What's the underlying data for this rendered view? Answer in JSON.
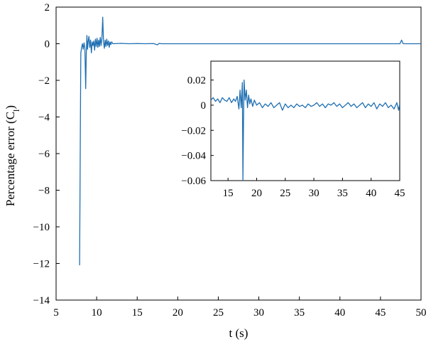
{
  "chart_data": [
    {
      "id": "main",
      "type": "line",
      "xlabel": "t (s)",
      "ylabel": "Percentage error (C",
      "ylabel_sub": "l",
      "ylabel_close": ")",
      "xlim": [
        5,
        50
      ],
      "ylim": [
        -14,
        2
      ],
      "xticks": [
        "5",
        "10",
        "15",
        "20",
        "25",
        "30",
        "35",
        "40",
        "45",
        "50"
      ],
      "yticks": [
        "2",
        "0",
        "−2",
        "−4",
        "−6",
        "−8",
        "−10",
        "−12",
        "−14"
      ],
      "grid": false,
      "series": [
        {
          "color": "#1f6fb2",
          "points": [
            [
              7.9,
              -12.1
            ],
            [
              8.0,
              -4.0
            ],
            [
              8.05,
              -0.5
            ],
            [
              8.15,
              -0.2
            ],
            [
              8.25,
              0.0
            ],
            [
              8.35,
              -0.3
            ],
            [
              8.45,
              0.05
            ],
            [
              8.55,
              -0.25
            ],
            [
              8.65,
              -2.45
            ],
            [
              8.72,
              -0.6
            ],
            [
              8.8,
              0.45
            ],
            [
              8.88,
              -0.3
            ],
            [
              8.95,
              0.1
            ],
            [
              9.05,
              0.4
            ],
            [
              9.15,
              -0.2
            ],
            [
              9.25,
              0.2
            ],
            [
              9.35,
              -0.5
            ],
            [
              9.45,
              0.1
            ],
            [
              9.55,
              -0.1
            ],
            [
              9.65,
              0.15
            ],
            [
              9.75,
              -0.35
            ],
            [
              9.85,
              0.25
            ],
            [
              9.95,
              -0.15
            ],
            [
              10.05,
              0.3
            ],
            [
              10.15,
              -0.2
            ],
            [
              10.25,
              0.2
            ],
            [
              10.35,
              -0.15
            ],
            [
              10.45,
              0.35
            ],
            [
              10.55,
              -0.1
            ],
            [
              10.65,
              0.3
            ],
            [
              10.75,
              1.45
            ],
            [
              10.85,
              0.1
            ],
            [
              10.95,
              -0.25
            ],
            [
              11.05,
              0.2
            ],
            [
              11.15,
              -0.15
            ],
            [
              11.25,
              0.25
            ],
            [
              11.35,
              -0.1
            ],
            [
              11.45,
              0.15
            ],
            [
              11.55,
              -0.2
            ],
            [
              11.65,
              0.1
            ],
            [
              11.75,
              -0.05
            ],
            [
              11.85,
              0.1
            ],
            [
              12.0,
              0.0
            ],
            [
              13.0,
              0.02
            ],
            [
              14.0,
              0.0
            ],
            [
              15.0,
              0.01
            ],
            [
              16.0,
              0.0
            ],
            [
              17.0,
              0.01
            ],
            [
              17.5,
              -0.06
            ],
            [
              17.7,
              0.02
            ],
            [
              18.0,
              0.0
            ],
            [
              20.0,
              0.0
            ],
            [
              25.0,
              0.0
            ],
            [
              30.0,
              0.0
            ],
            [
              35.0,
              0.0
            ],
            [
              40.0,
              0.0
            ],
            [
              45.0,
              0.0
            ],
            [
              47.4,
              0.0
            ],
            [
              47.6,
              0.2
            ],
            [
              47.8,
              0.0
            ],
            [
              50.0,
              0.0
            ]
          ]
        }
      ]
    },
    {
      "id": "inset",
      "type": "line",
      "xlim": [
        12,
        45
      ],
      "ylim": [
        -0.06,
        0.035
      ],
      "xticks": [
        "15",
        "20",
        "25",
        "30",
        "35",
        "40",
        "45"
      ],
      "yticks": [
        "0.02",
        "0",
        "−0.02",
        "−0.04",
        "−0.06"
      ],
      "grid": false,
      "series": [
        {
          "color": "#1f6fb2",
          "points": [
            [
              12.0,
              0.004
            ],
            [
              12.4,
              0.006
            ],
            [
              12.8,
              0.003
            ],
            [
              13.2,
              0.005
            ],
            [
              13.6,
              0.002
            ],
            [
              14.0,
              0.006
            ],
            [
              14.4,
              0.004
            ],
            [
              14.8,
              0.003
            ],
            [
              15.2,
              0.006
            ],
            [
              15.6,
              0.002
            ],
            [
              16.0,
              0.005
            ],
            [
              16.3,
              0.003
            ],
            [
              16.6,
              0.007
            ],
            [
              16.9,
              -0.003
            ],
            [
              17.1,
              0.012
            ],
            [
              17.3,
              -0.002
            ],
            [
              17.5,
              0.018
            ],
            [
              17.6,
              -0.06
            ],
            [
              17.7,
              -0.015
            ],
            [
              17.8,
              0.02
            ],
            [
              18.0,
              0.004
            ],
            [
              18.2,
              0.012
            ],
            [
              18.4,
              -0.002
            ],
            [
              18.6,
              0.008
            ],
            [
              18.8,
              0.001
            ],
            [
              19.0,
              0.005
            ],
            [
              19.3,
              -0.001
            ],
            [
              19.6,
              0.004
            ],
            [
              20.0,
              0.0
            ],
            [
              20.5,
              0.002
            ],
            [
              21.0,
              -0.002
            ],
            [
              21.5,
              0.001
            ],
            [
              22.0,
              -0.001
            ],
            [
              22.5,
              0.002
            ],
            [
              23.0,
              -0.002
            ],
            [
              23.5,
              0.0
            ],
            [
              24.0,
              0.002
            ],
            [
              24.5,
              -0.004
            ],
            [
              25.0,
              0.001
            ],
            [
              25.5,
              -0.002
            ],
            [
              26.0,
              0.0
            ],
            [
              26.5,
              -0.002
            ],
            [
              27.0,
              0.001
            ],
            [
              27.5,
              -0.001
            ],
            [
              28.0,
              0.0
            ],
            [
              28.5,
              -0.002
            ],
            [
              29.0,
              0.001
            ],
            [
              29.5,
              -0.001
            ],
            [
              30.0,
              0.0
            ],
            [
              30.5,
              0.002
            ],
            [
              31.0,
              -0.001
            ],
            [
              31.5,
              0.001
            ],
            [
              32.0,
              -0.002
            ],
            [
              32.5,
              0.001
            ],
            [
              33.0,
              0.0
            ],
            [
              33.5,
              0.002
            ],
            [
              34.0,
              -0.001
            ],
            [
              34.5,
              0.001
            ],
            [
              35.0,
              -0.002
            ],
            [
              35.5,
              0.0
            ],
            [
              36.0,
              0.002
            ],
            [
              36.5,
              -0.001
            ],
            [
              37.0,
              0.001
            ],
            [
              37.5,
              -0.002
            ],
            [
              38.0,
              0.0
            ],
            [
              38.5,
              0.002
            ],
            [
              39.0,
              -0.002
            ],
            [
              39.5,
              0.001
            ],
            [
              40.0,
              -0.001
            ],
            [
              40.5,
              0.002
            ],
            [
              41.0,
              -0.003
            ],
            [
              41.5,
              0.001
            ],
            [
              42.0,
              -0.001
            ],
            [
              42.5,
              0.002
            ],
            [
              43.0,
              -0.002
            ],
            [
              43.5,
              0.0
            ],
            [
              44.0,
              -0.003
            ],
            [
              44.5,
              0.002
            ],
            [
              44.8,
              -0.004
            ],
            [
              45.0,
              0.001
            ]
          ]
        }
      ]
    }
  ]
}
